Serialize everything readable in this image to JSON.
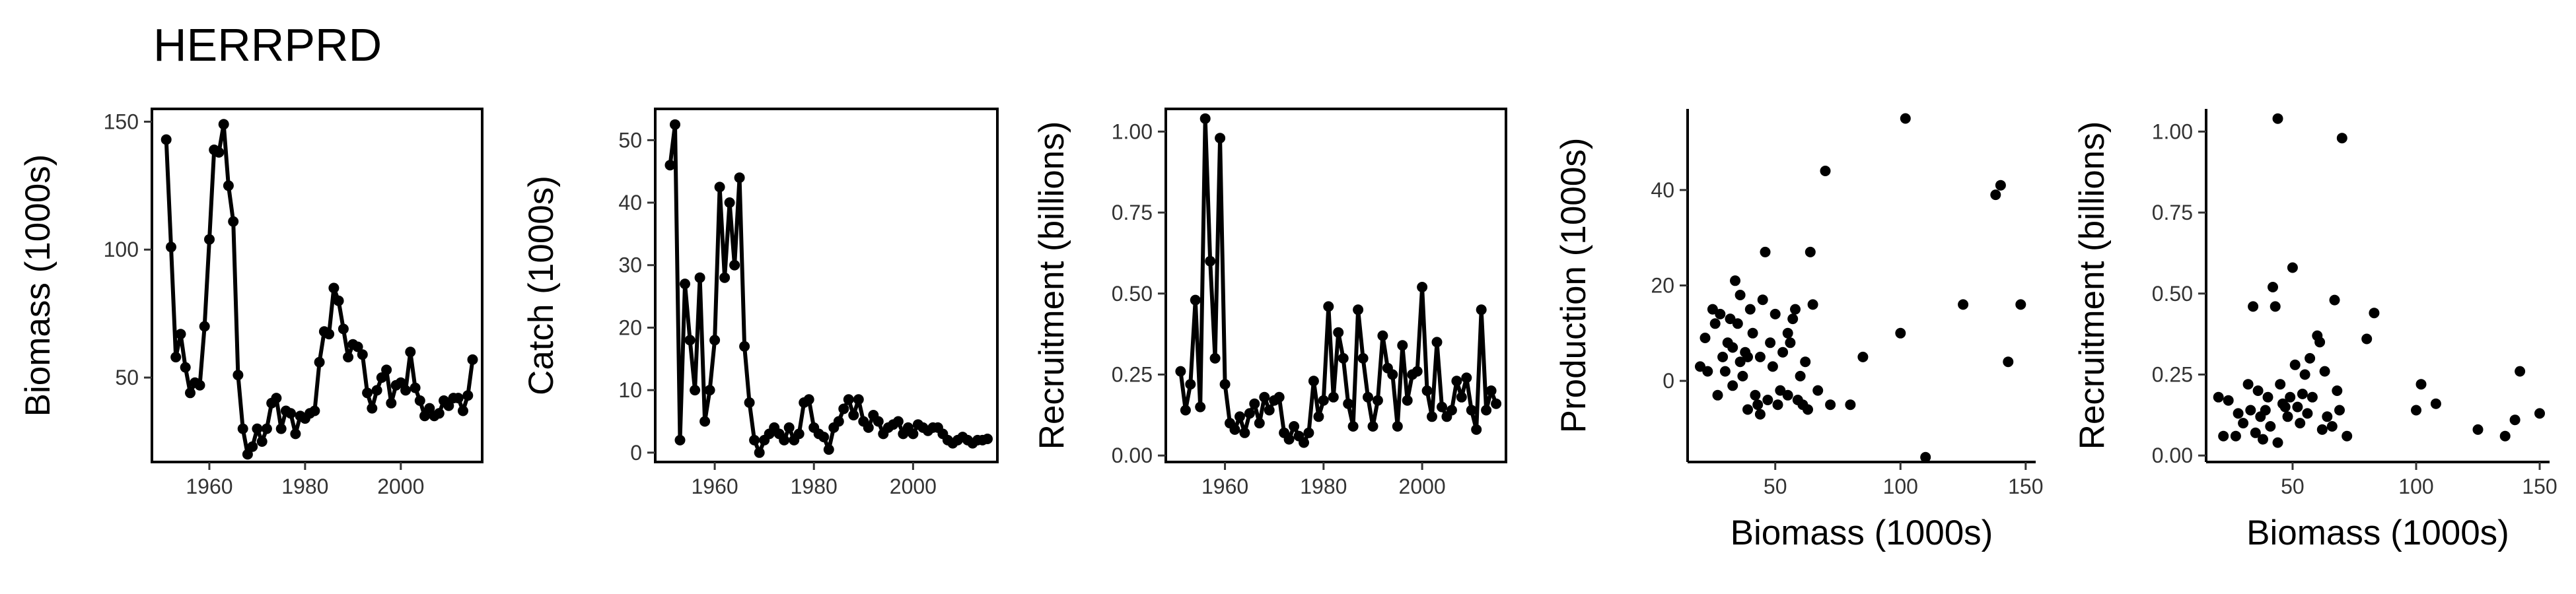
{
  "title": "HERRPRD",
  "chart_data": [
    {
      "id": "biomass",
      "type": "line",
      "xlabel": "",
      "ylabel": "Biomass (1000s)",
      "xlim": [
        1948,
        2017
      ],
      "ylim": [
        17,
        155
      ],
      "xticks": [
        1960,
        1980,
        2000
      ],
      "yticks": [
        50,
        100,
        150
      ],
      "points": [
        [
          1951,
          143
        ],
        [
          1952,
          101
        ],
        [
          1953,
          58
        ],
        [
          1954,
          67
        ],
        [
          1955,
          54
        ],
        [
          1956,
          44
        ],
        [
          1957,
          48
        ],
        [
          1958,
          47
        ],
        [
          1959,
          70
        ],
        [
          1960,
          104
        ],
        [
          1961,
          139
        ],
        [
          1962,
          138
        ],
        [
          1963,
          149
        ],
        [
          1964,
          125
        ],
        [
          1965,
          111
        ],
        [
          1966,
          51
        ],
        [
          1967,
          30
        ],
        [
          1968,
          20
        ],
        [
          1969,
          23
        ],
        [
          1970,
          30
        ],
        [
          1971,
          25
        ],
        [
          1972,
          30
        ],
        [
          1973,
          40
        ],
        [
          1974,
          42
        ],
        [
          1975,
          30
        ],
        [
          1976,
          37
        ],
        [
          1977,
          36
        ],
        [
          1978,
          28
        ],
        [
          1979,
          35
        ],
        [
          1980,
          34
        ],
        [
          1981,
          36
        ],
        [
          1982,
          37
        ],
        [
          1983,
          56
        ],
        [
          1984,
          68
        ],
        [
          1985,
          67
        ],
        [
          1986,
          85
        ],
        [
          1987,
          80
        ],
        [
          1988,
          69
        ],
        [
          1989,
          58
        ],
        [
          1990,
          63
        ],
        [
          1991,
          62
        ],
        [
          1992,
          59
        ],
        [
          1993,
          44
        ],
        [
          1994,
          38
        ],
        [
          1995,
          45
        ],
        [
          1996,
          50
        ],
        [
          1997,
          53
        ],
        [
          1998,
          40
        ],
        [
          1999,
          47
        ],
        [
          2000,
          48
        ],
        [
          2001,
          45
        ],
        [
          2002,
          60
        ],
        [
          2003,
          46
        ],
        [
          2004,
          41
        ],
        [
          2005,
          35
        ],
        [
          2006,
          38
        ],
        [
          2007,
          35
        ],
        [
          2008,
          36
        ],
        [
          2009,
          41
        ],
        [
          2010,
          39
        ],
        [
          2011,
          42
        ],
        [
          2012,
          42
        ],
        [
          2013,
          37
        ],
        [
          2014,
          43
        ],
        [
          2015,
          57
        ]
      ]
    },
    {
      "id": "catch",
      "type": "line",
      "xlabel": "",
      "ylabel": "Catch (1000s)",
      "xlim": [
        1948,
        2017
      ],
      "ylim": [
        -1.5,
        55
      ],
      "xticks": [
        1960,
        1980,
        2000
      ],
      "yticks": [
        0,
        10,
        20,
        30,
        40,
        50
      ],
      "points": [
        [
          1951,
          46
        ],
        [
          1952,
          52.5
        ],
        [
          1953,
          2
        ],
        [
          1954,
          27
        ],
        [
          1955,
          18
        ],
        [
          1956,
          10
        ],
        [
          1957,
          28
        ],
        [
          1958,
          5
        ],
        [
          1959,
          10
        ],
        [
          1960,
          18
        ],
        [
          1961,
          42.5
        ],
        [
          1962,
          28
        ],
        [
          1963,
          40
        ],
        [
          1964,
          30
        ],
        [
          1965,
          44
        ],
        [
          1966,
          17
        ],
        [
          1967,
          8
        ],
        [
          1968,
          2
        ],
        [
          1969,
          0
        ],
        [
          1970,
          2
        ],
        [
          1971,
          3
        ],
        [
          1972,
          4
        ],
        [
          1973,
          3
        ],
        [
          1974,
          2
        ],
        [
          1975,
          4
        ],
        [
          1976,
          2
        ],
        [
          1977,
          3
        ],
        [
          1978,
          8
        ],
        [
          1979,
          8.5
        ],
        [
          1980,
          4
        ],
        [
          1981,
          3
        ],
        [
          1982,
          2.5
        ],
        [
          1983,
          0.5
        ],
        [
          1984,
          4
        ],
        [
          1985,
          5
        ],
        [
          1986,
          7
        ],
        [
          1987,
          8.5
        ],
        [
          1988,
          6
        ],
        [
          1989,
          8.5
        ],
        [
          1990,
          5
        ],
        [
          1991,
          4
        ],
        [
          1992,
          6
        ],
        [
          1993,
          5
        ],
        [
          1994,
          3
        ],
        [
          1995,
          4
        ],
        [
          1996,
          4.5
        ],
        [
          1997,
          5
        ],
        [
          1998,
          3
        ],
        [
          1999,
          4
        ],
        [
          2000,
          3
        ],
        [
          2001,
          4.5
        ],
        [
          2002,
          4
        ],
        [
          2003,
          3.5
        ],
        [
          2004,
          4
        ],
        [
          2005,
          4
        ],
        [
          2006,
          3
        ],
        [
          2007,
          2
        ],
        [
          2008,
          1.5
        ],
        [
          2009,
          2
        ],
        [
          2010,
          2.5
        ],
        [
          2011,
          2
        ],
        [
          2012,
          1.5
        ],
        [
          2013,
          2
        ],
        [
          2014,
          2
        ],
        [
          2015,
          2.2
        ]
      ]
    },
    {
      "id": "recruitment-ts",
      "type": "line",
      "xlabel": "",
      "ylabel": "Recruitment (billions)",
      "xlim": [
        1948,
        2017
      ],
      "ylim": [
        -0.02,
        1.07
      ],
      "xticks": [
        1960,
        1980,
        2000
      ],
      "yticks": [
        0.0,
        0.25,
        0.5,
        0.75,
        1.0
      ],
      "ytick_labels": [
        "0.00",
        "0.25",
        "0.50",
        "0.75",
        "1.00"
      ],
      "points": [
        [
          1951,
          0.26
        ],
        [
          1952,
          0.14
        ],
        [
          1953,
          0.22
        ],
        [
          1954,
          0.48
        ],
        [
          1955,
          0.15
        ],
        [
          1956,
          1.04
        ],
        [
          1957,
          0.6
        ],
        [
          1958,
          0.3
        ],
        [
          1959,
          0.98
        ],
        [
          1960,
          0.22
        ],
        [
          1961,
          0.1
        ],
        [
          1962,
          0.08
        ],
        [
          1963,
          0.12
        ],
        [
          1964,
          0.07
        ],
        [
          1965,
          0.13
        ],
        [
          1966,
          0.16
        ],
        [
          1967,
          0.1
        ],
        [
          1968,
          0.18
        ],
        [
          1969,
          0.14
        ],
        [
          1970,
          0.17
        ],
        [
          1971,
          0.18
        ],
        [
          1972,
          0.07
        ],
        [
          1973,
          0.05
        ],
        [
          1974,
          0.09
        ],
        [
          1975,
          0.06
        ],
        [
          1976,
          0.04
        ],
        [
          1977,
          0.07
        ],
        [
          1978,
          0.23
        ],
        [
          1979,
          0.12
        ],
        [
          1980,
          0.17
        ],
        [
          1981,
          0.46
        ],
        [
          1982,
          0.18
        ],
        [
          1983,
          0.38
        ],
        [
          1984,
          0.3
        ],
        [
          1985,
          0.16
        ],
        [
          1986,
          0.09
        ],
        [
          1987,
          0.45
        ],
        [
          1988,
          0.3
        ],
        [
          1989,
          0.18
        ],
        [
          1990,
          0.09
        ],
        [
          1991,
          0.17
        ],
        [
          1992,
          0.37
        ],
        [
          1993,
          0.27
        ],
        [
          1994,
          0.25
        ],
        [
          1995,
          0.09
        ],
        [
          1996,
          0.34
        ],
        [
          1997,
          0.17
        ],
        [
          1998,
          0.25
        ],
        [
          1999,
          0.26
        ],
        [
          2000,
          0.52
        ],
        [
          2001,
          0.2
        ],
        [
          2002,
          0.12
        ],
        [
          2003,
          0.35
        ],
        [
          2004,
          0.15
        ],
        [
          2005,
          0.12
        ],
        [
          2006,
          0.14
        ],
        [
          2007,
          0.23
        ],
        [
          2008,
          0.18
        ],
        [
          2009,
          0.24
        ],
        [
          2010,
          0.14
        ],
        [
          2011,
          0.08
        ],
        [
          2012,
          0.45
        ],
        [
          2013,
          0.14
        ],
        [
          2014,
          0.2
        ],
        [
          2015,
          0.16
        ]
      ]
    },
    {
      "id": "production-vs-biomass",
      "type": "scatter",
      "xlabel": "Biomass (1000s)",
      "ylabel": "Production (1000s)",
      "xlim": [
        15,
        154
      ],
      "ylim": [
        -17,
        57
      ],
      "xticks": [
        50,
        100,
        150
      ],
      "yticks": [
        0,
        20,
        40
      ],
      "points": [
        [
          20,
          3
        ],
        [
          22,
          9
        ],
        [
          25,
          15
        ],
        [
          27,
          -3
        ],
        [
          28,
          14
        ],
        [
          29,
          5
        ],
        [
          30,
          2
        ],
        [
          31,
          8
        ],
        [
          32,
          13
        ],
        [
          33,
          7
        ],
        [
          34,
          21
        ],
        [
          35,
          12
        ],
        [
          36,
          18
        ],
        [
          36,
          4
        ],
        [
          37,
          1
        ],
        [
          38,
          6
        ],
        [
          39,
          -6
        ],
        [
          40,
          15
        ],
        [
          41,
          10
        ],
        [
          42,
          -3
        ],
        [
          43,
          -5
        ],
        [
          44,
          5
        ],
        [
          45,
          17
        ],
        [
          46,
          27
        ],
        [
          47,
          -4
        ],
        [
          48,
          8
        ],
        [
          49,
          3
        ],
        [
          50,
          14
        ],
        [
          51,
          -5
        ],
        [
          52,
          -2
        ],
        [
          53,
          6
        ],
        [
          55,
          10
        ],
        [
          56,
          8
        ],
        [
          57,
          13
        ],
        [
          58,
          15
        ],
        [
          59,
          -4
        ],
        [
          60,
          1
        ],
        [
          62,
          4
        ],
        [
          63,
          -6
        ],
        [
          64,
          27
        ],
        [
          65,
          16
        ],
        [
          67,
          -2
        ],
        [
          70,
          44
        ],
        [
          72,
          -5
        ],
        [
          80,
          -5
        ],
        [
          85,
          5
        ],
        [
          100,
          10
        ],
        [
          102,
          55
        ],
        [
          110,
          -16
        ],
        [
          125,
          16
        ],
        [
          138,
          39
        ],
        [
          140,
          41
        ],
        [
          143,
          4
        ],
        [
          148,
          16
        ],
        [
          23,
          2
        ],
        [
          26,
          12
        ],
        [
          33,
          -1
        ],
        [
          39,
          5
        ],
        [
          44,
          -7
        ],
        [
          55,
          -3
        ],
        [
          61,
          -5
        ]
      ]
    },
    {
      "id": "recruitment-vs-biomass",
      "type": "scatter",
      "xlabel": "Biomass (1000s)",
      "ylabel": "Recruitment (billions)",
      "xlim": [
        15,
        154
      ],
      "ylim": [
        -0.02,
        1.07
      ],
      "xticks": [
        50,
        100,
        150
      ],
      "yticks": [
        0.0,
        0.25,
        0.5,
        0.75,
        1.0
      ],
      "ytick_labels": [
        "0.00",
        "0.25",
        "0.50",
        "0.75",
        "1.00"
      ],
      "points": [
        [
          20,
          0.18
        ],
        [
          22,
          0.06
        ],
        [
          24,
          0.17
        ],
        [
          27,
          0.06
        ],
        [
          28,
          0.13
        ],
        [
          30,
          0.1
        ],
        [
          32,
          0.22
        ],
        [
          33,
          0.14
        ],
        [
          34,
          0.46
        ],
        [
          35,
          0.07
        ],
        [
          36,
          0.2
        ],
        [
          37,
          0.12
        ],
        [
          38,
          0.05
        ],
        [
          39,
          0.14
        ],
        [
          40,
          0.18
        ],
        [
          41,
          0.09
        ],
        [
          42,
          0.52
        ],
        [
          43,
          0.46
        ],
        [
          44,
          0.04
        ],
        [
          44,
          1.04
        ],
        [
          45,
          0.22
        ],
        [
          46,
          0.16
        ],
        [
          47,
          0.15
        ],
        [
          48,
          0.12
        ],
        [
          49,
          0.18
        ],
        [
          50,
          0.58
        ],
        [
          51,
          0.28
        ],
        [
          52,
          0.15
        ],
        [
          53,
          0.1
        ],
        [
          54,
          0.19
        ],
        [
          55,
          0.25
        ],
        [
          56,
          0.13
        ],
        [
          57,
          0.3
        ],
        [
          58,
          0.18
        ],
        [
          60,
          0.37
        ],
        [
          61,
          0.35
        ],
        [
          62,
          0.08
        ],
        [
          63,
          0.26
        ],
        [
          64,
          0.12
        ],
        [
          66,
          0.09
        ],
        [
          67,
          0.48
        ],
        [
          68,
          0.2
        ],
        [
          69,
          0.14
        ],
        [
          70,
          0.98
        ],
        [
          72,
          0.06
        ],
        [
          80,
          0.36
        ],
        [
          83,
          0.44
        ],
        [
          100,
          0.14
        ],
        [
          102,
          0.22
        ],
        [
          108,
          0.16
        ],
        [
          125,
          0.08
        ],
        [
          136,
          0.06
        ],
        [
          140,
          0.11
        ],
        [
          142,
          0.26
        ],
        [
          150,
          0.13
        ]
      ]
    }
  ]
}
